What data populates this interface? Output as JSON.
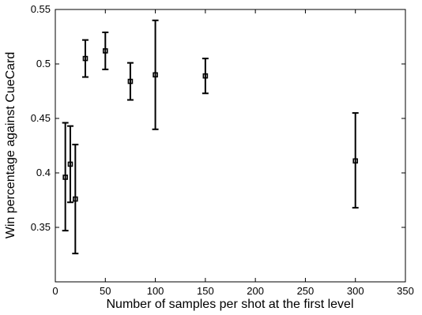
{
  "chart_data": {
    "type": "scatter",
    "title": "",
    "xlabel": "Number of samples per shot at the first level",
    "ylabel": "Win percentage against CueCard",
    "xlim": [
      0,
      350
    ],
    "ylim": [
      0.3,
      0.55
    ],
    "xticks": [
      0,
      50,
      100,
      150,
      200,
      250,
      300,
      350
    ],
    "yticks": [
      0.35,
      0.4,
      0.45,
      0.5,
      0.55
    ],
    "xtick_labels": [
      "0",
      "50",
      "100",
      "150",
      "200",
      "250",
      "300",
      "350"
    ],
    "ytick_labels": [
      "0.35",
      "0.4",
      "0.45",
      "0.5",
      "0.55"
    ],
    "grid": false,
    "marker": "square",
    "error_bars": true,
    "points": [
      {
        "x": 10,
        "y": 0.396,
        "lower": 0.347,
        "upper": 0.446
      },
      {
        "x": 15,
        "y": 0.408,
        "lower": 0.373,
        "upper": 0.443
      },
      {
        "x": 20,
        "y": 0.376,
        "lower": 0.326,
        "upper": 0.426
      },
      {
        "x": 30,
        "y": 0.505,
        "lower": 0.488,
        "upper": 0.522
      },
      {
        "x": 50,
        "y": 0.512,
        "lower": 0.495,
        "upper": 0.529
      },
      {
        "x": 75,
        "y": 0.484,
        "lower": 0.467,
        "upper": 0.501
      },
      {
        "x": 100,
        "y": 0.49,
        "lower": 0.44,
        "upper": 0.54
      },
      {
        "x": 150,
        "y": 0.489,
        "lower": 0.473,
        "upper": 0.505
      },
      {
        "x": 300,
        "y": 0.411,
        "lower": 0.368,
        "upper": 0.455
      }
    ]
  }
}
